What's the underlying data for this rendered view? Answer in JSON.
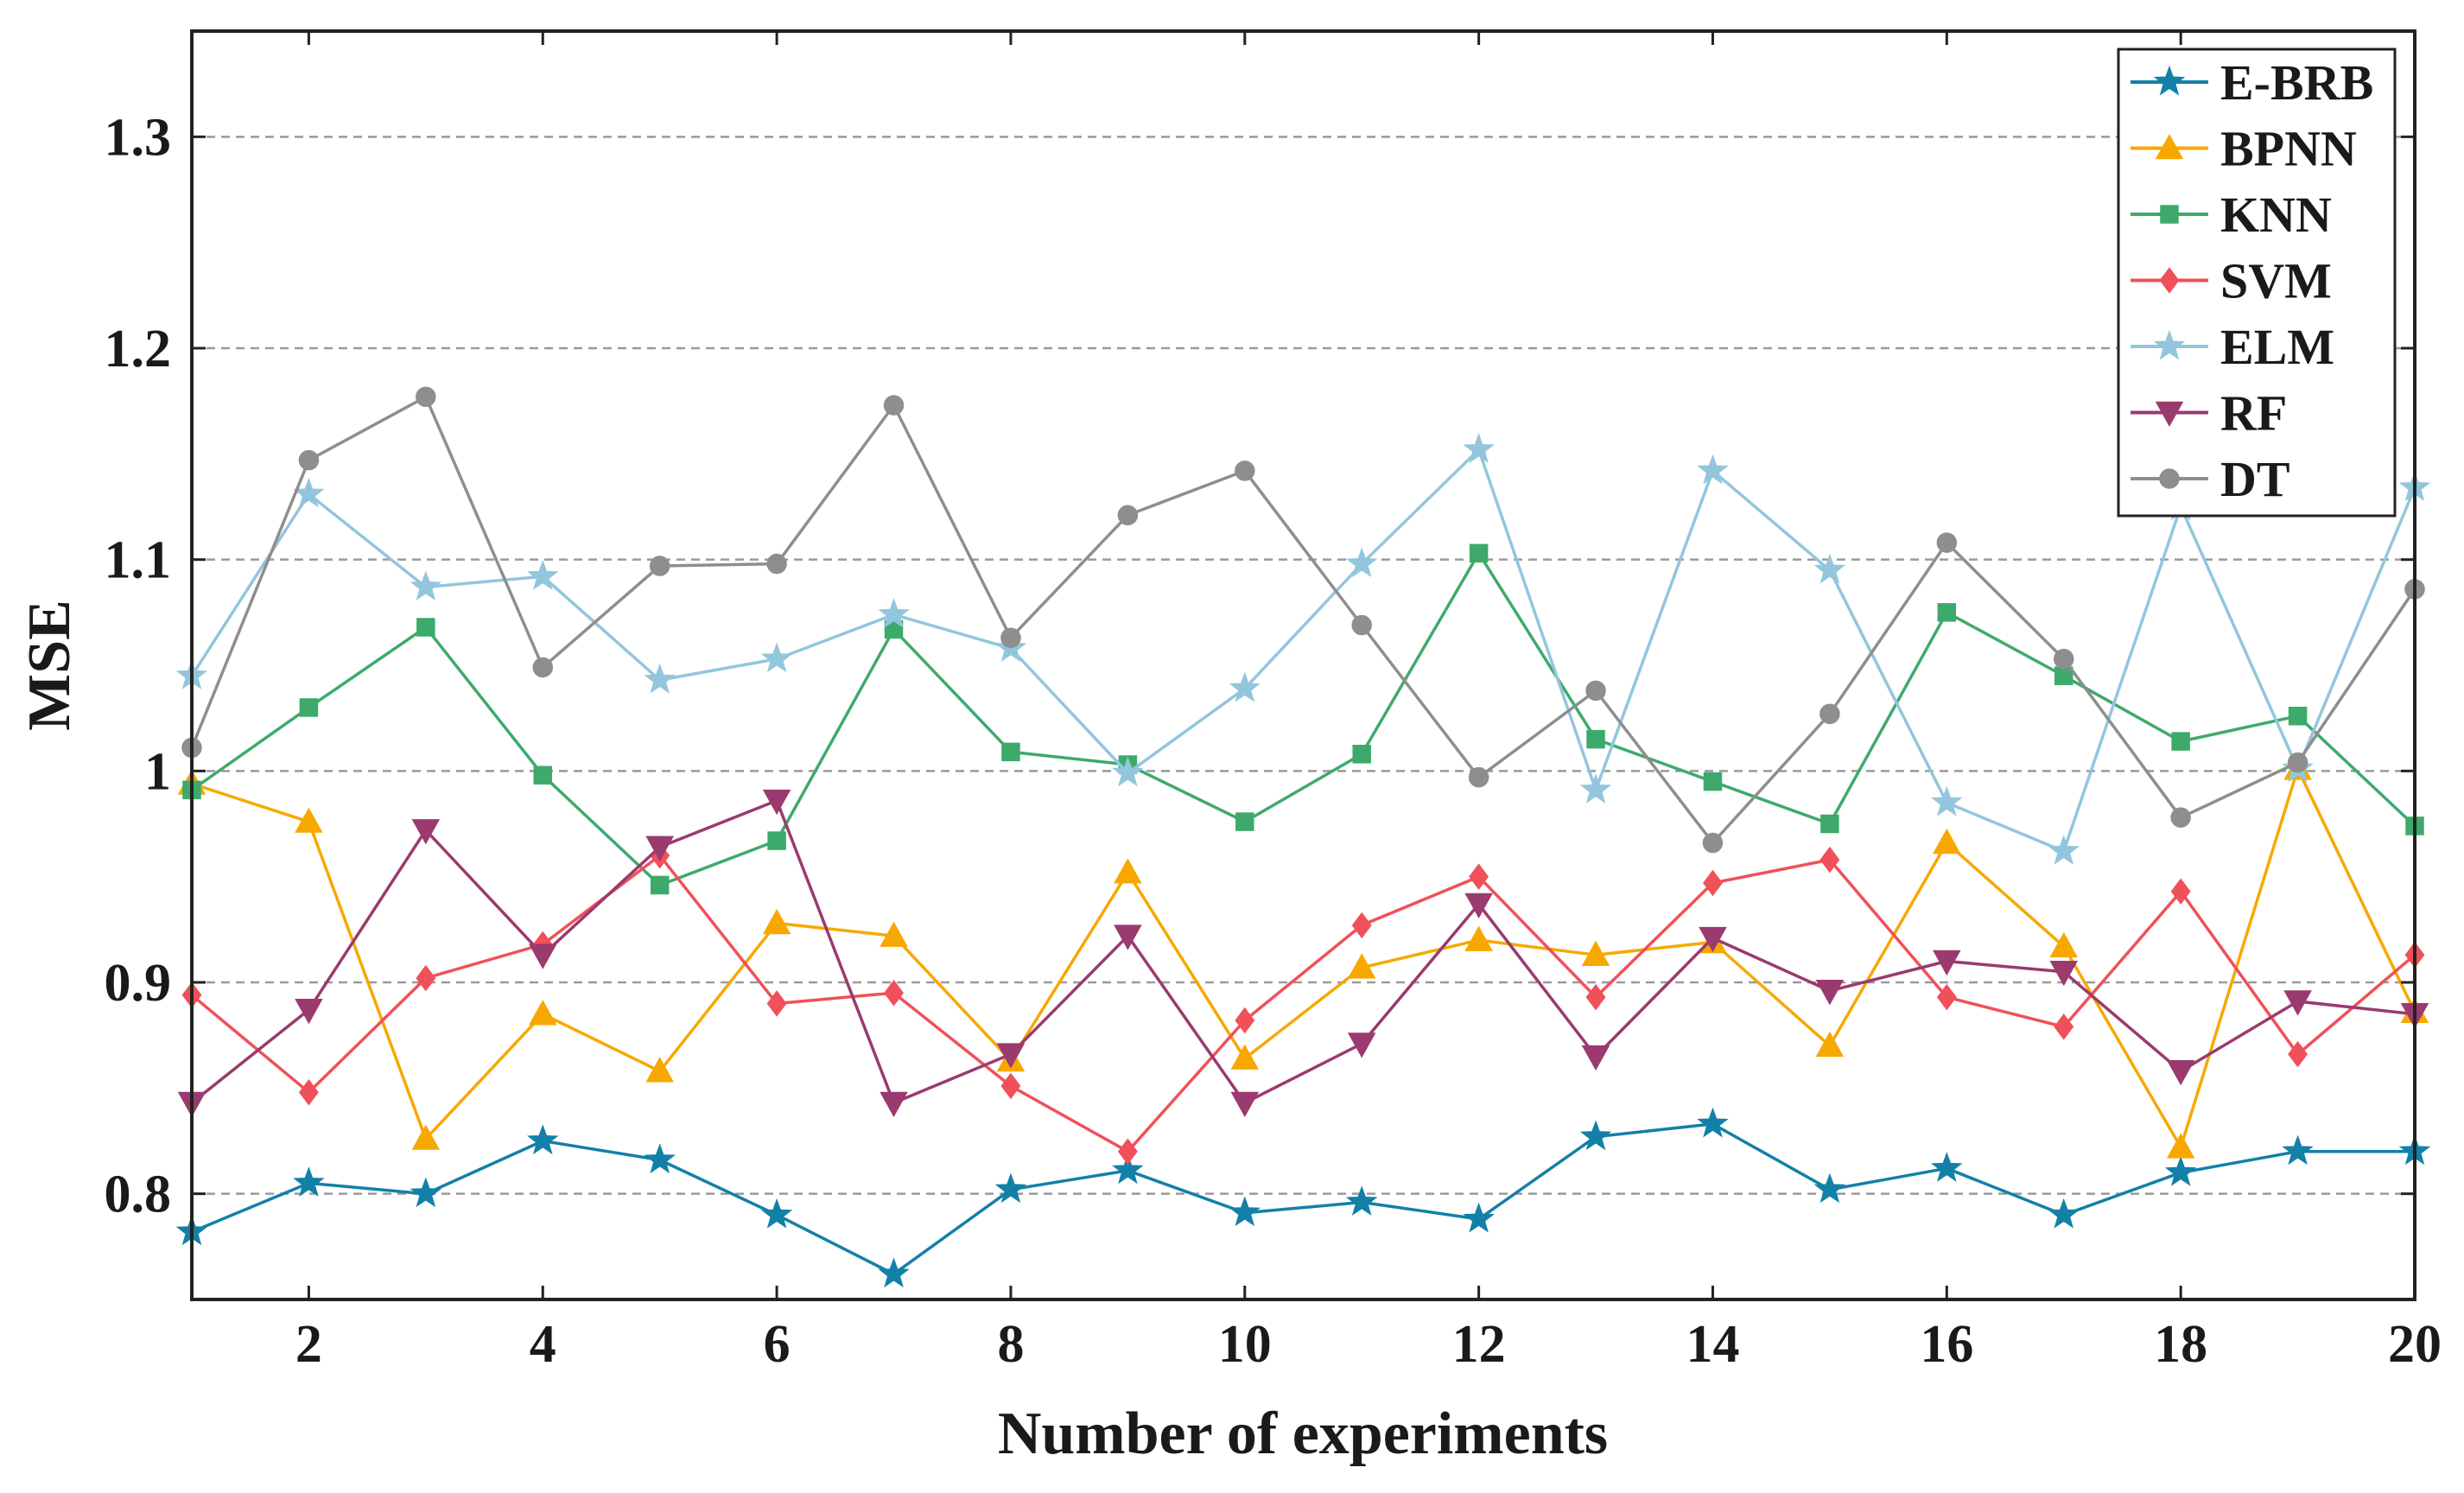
{
  "chart_data": {
    "type": "line",
    "title": "",
    "xlabel": "Number of experiments",
    "ylabel": "MSE",
    "x": [
      1,
      2,
      3,
      4,
      5,
      6,
      7,
      8,
      9,
      10,
      11,
      12,
      13,
      14,
      15,
      16,
      17,
      18,
      19,
      20
    ],
    "xlim": [
      1,
      20
    ],
    "ylim": [
      0.75,
      1.35
    ],
    "xticks": [
      2,
      4,
      6,
      8,
      10,
      12,
      14,
      16,
      18,
      20
    ],
    "xtick_labels": [
      "2",
      "4",
      "6",
      "8",
      "10",
      "12",
      "14",
      "16",
      "18",
      "20"
    ],
    "yticks": [
      0.8,
      0.9,
      1.0,
      1.1,
      1.2,
      1.3
    ],
    "ytick_labels": [
      "0.8",
      "0.9",
      "1",
      "1.1",
      "1.2",
      "1.3"
    ],
    "grid": "horizontal dashed",
    "legend_position": "top-right",
    "series": [
      {
        "name": "E-BRB",
        "color": "#1380a8",
        "marker": "star",
        "values": [
          0.782,
          0.805,
          0.8,
          0.825,
          0.816,
          0.79,
          0.762,
          0.802,
          0.811,
          0.791,
          0.796,
          0.788,
          0.827,
          0.833,
          0.802,
          0.812,
          0.79,
          0.81,
          0.82,
          0.82
        ]
      },
      {
        "name": "BPNN",
        "color": "#f7a800",
        "marker": "triangle-up",
        "values": [
          0.994,
          0.976,
          0.826,
          0.885,
          0.858,
          0.928,
          0.922,
          0.863,
          0.952,
          0.864,
          0.907,
          0.92,
          0.913,
          0.919,
          0.87,
          0.966,
          0.917,
          0.822,
          1.001,
          0.886
        ]
      },
      {
        "name": "KNN",
        "color": "#3daa6c",
        "marker": "square",
        "values": [
          0.991,
          1.03,
          1.068,
          0.998,
          0.946,
          0.967,
          1.067,
          1.009,
          1.003,
          0.976,
          1.008,
          1.103,
          1.015,
          0.995,
          0.975,
          1.075,
          1.045,
          1.014,
          1.026,
          0.974
        ]
      },
      {
        "name": "SVM",
        "color": "#f0505a",
        "marker": "diamond",
        "values": [
          0.894,
          0.848,
          0.902,
          0.918,
          0.96,
          0.89,
          0.895,
          0.851,
          0.82,
          0.882,
          0.927,
          0.95,
          0.893,
          0.947,
          0.958,
          0.893,
          0.879,
          0.943,
          0.866,
          0.913
        ]
      },
      {
        "name": "ELM",
        "color": "#92c6dd",
        "marker": "star",
        "values": [
          1.045,
          1.131,
          1.087,
          1.092,
          1.043,
          1.053,
          1.074,
          1.058,
          0.999,
          1.039,
          1.098,
          1.152,
          0.991,
          1.142,
          1.095,
          0.985,
          0.962,
          1.125,
          1.001,
          1.134
        ]
      },
      {
        "name": "RF",
        "color": "#9a3a6e",
        "marker": "triangle-down",
        "values": [
          0.843,
          0.887,
          0.972,
          0.913,
          0.964,
          0.986,
          0.843,
          0.866,
          0.922,
          0.843,
          0.871,
          0.937,
          0.865,
          0.921,
          0.896,
          0.91,
          0.905,
          0.858,
          0.891,
          0.885
        ]
      },
      {
        "name": "DT",
        "color": "#8e8e8e",
        "marker": "circle",
        "values": [
          1.011,
          1.147,
          1.177,
          1.049,
          1.097,
          1.098,
          1.173,
          1.063,
          1.121,
          1.142,
          1.069,
          0.997,
          1.038,
          0.966,
          1.027,
          1.108,
          1.053,
          0.978,
          1.004,
          1.086
        ]
      }
    ]
  }
}
